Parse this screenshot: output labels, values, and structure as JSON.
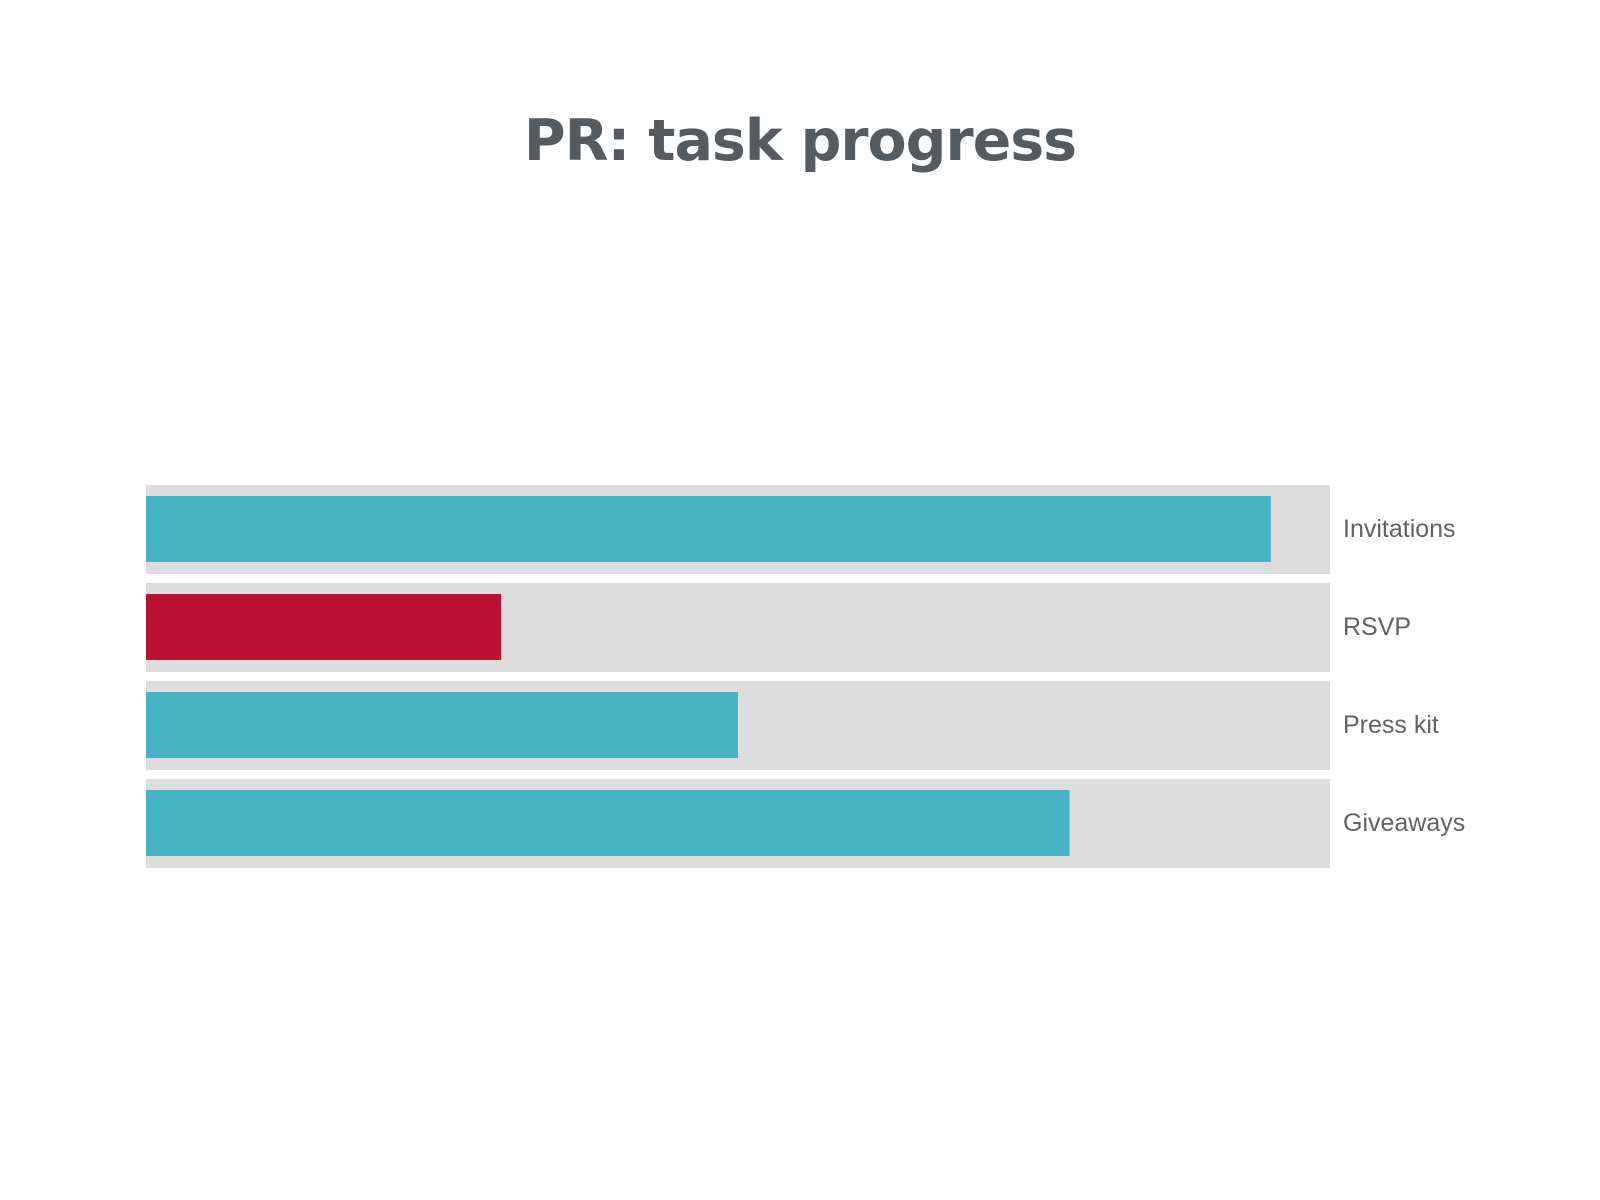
{
  "chart_data": {
    "type": "bar",
    "orientation": "horizontal",
    "title": "PR: task progress",
    "unit": "percent",
    "categories": [
      "Invitations",
      "RSVP",
      "Press kit",
      "Giveaways"
    ],
    "values": [
      95,
      30,
      50,
      78
    ],
    "xlim": [
      0,
      100
    ],
    "legend": "none",
    "grid": false,
    "label_placement": "right-of-track",
    "highlight_category": "RSVP",
    "colors": {
      "bar": "#46b4c4",
      "highlight": "#bb1133",
      "track": "#dddddd",
      "title": "#555b5e",
      "label": "#5f6366"
    }
  }
}
